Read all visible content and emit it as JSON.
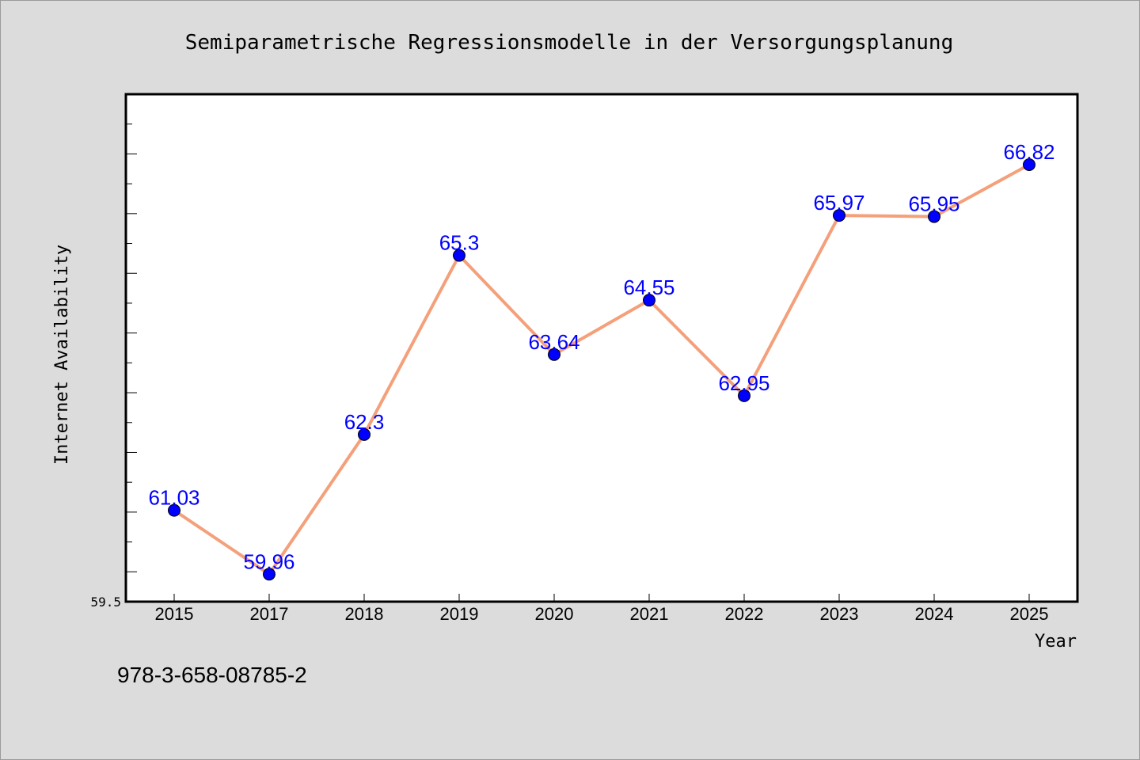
{
  "chart_data": {
    "type": "line",
    "title": "Semiparametrische Regressionsmodelle in der Versorgungsplanung",
    "xlabel": "Year",
    "ylabel": "Internet Availability",
    "categories": [
      "2015",
      "2017",
      "2018",
      "2019",
      "2020",
      "2021",
      "2022",
      "2023",
      "2024",
      "2025"
    ],
    "series": [
      {
        "values": [
          61.03,
          59.96,
          62.3,
          65.3,
          63.64,
          64.55,
          62.95,
          65.97,
          65.95,
          66.82
        ],
        "data_labels": [
          "61.03",
          "59.96",
          "62.3",
          "65.3",
          "63.64",
          "64.55",
          "62.95",
          "65.97",
          "65.95",
          "66.82"
        ],
        "line_color": "#f4a07a",
        "marker_color": "#0000ff"
      }
    ],
    "ylim": [
      59.5,
      68
    ],
    "yticks_labeled": [
      "59.5"
    ],
    "grid": false,
    "legend": "none"
  },
  "footer": {
    "isbn": "978-3-658-08785-2"
  }
}
